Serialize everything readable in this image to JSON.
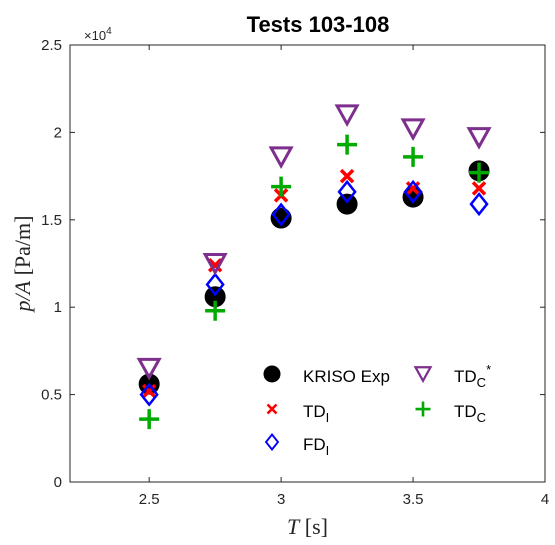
{
  "chart_data": {
    "type": "scatter",
    "title": "Tests 103-108",
    "xlabel": "T [s]",
    "ylabel": "p/A [Pa/m]",
    "xlim": [
      2.2,
      4
    ],
    "ylim": [
      0,
      25000
    ],
    "xticks": [
      2.5,
      3,
      3.5,
      4
    ],
    "xtick_labels": [
      "2.5",
      "3",
      "3.5",
      "4"
    ],
    "yticks": [
      0,
      5000,
      10000,
      15000,
      20000,
      25000
    ],
    "ytick_labels": [
      "0",
      "0.5",
      "1",
      "1.5",
      "2",
      "2.5"
    ],
    "y_exponent_label": "×10",
    "y_exponent_power": "4",
    "grid": false,
    "legend_position": "lower-right",
    "series": [
      {
        "name": "KRISO Exp",
        "marker": "filled-circle",
        "color": "#000000",
        "x": [
          2.5,
          2.75,
          3.0,
          3.25,
          3.5,
          3.75
        ],
        "y": [
          5600,
          10600,
          15100,
          15900,
          16300,
          17800
        ]
      },
      {
        "name": "TD",
        "subscript": "I",
        "superscript": "",
        "marker": "x",
        "color": "#ff0000",
        "x": [
          2.5,
          2.75,
          3.0,
          3.25,
          3.5,
          3.75
        ],
        "y": [
          5200,
          12400,
          16400,
          17500,
          16800,
          16800
        ]
      },
      {
        "name": "FD",
        "subscript": "I",
        "superscript": "",
        "marker": "diamond",
        "color": "#0000ff",
        "x": [
          2.5,
          2.75,
          3.0,
          3.25,
          3.5,
          3.75
        ],
        "y": [
          5000,
          11300,
          15300,
          16600,
          16600,
          15900
        ]
      },
      {
        "name": "TD",
        "subscript": "C",
        "superscript": "*",
        "marker": "triangle-down",
        "color": "#7e2f8e",
        "x": [
          2.5,
          2.75,
          3.0,
          3.25,
          3.5,
          3.75
        ],
        "y": [
          6500,
          12500,
          18600,
          21000,
          20200,
          19700
        ]
      },
      {
        "name": "TD",
        "subscript": "C",
        "superscript": "",
        "marker": "plus",
        "color": "#00aa00",
        "x": [
          2.5,
          2.75,
          3.0,
          3.25,
          3.5,
          3.75
        ],
        "y": [
          3600,
          9800,
          16900,
          19300,
          18600,
          17700
        ]
      }
    ]
  }
}
